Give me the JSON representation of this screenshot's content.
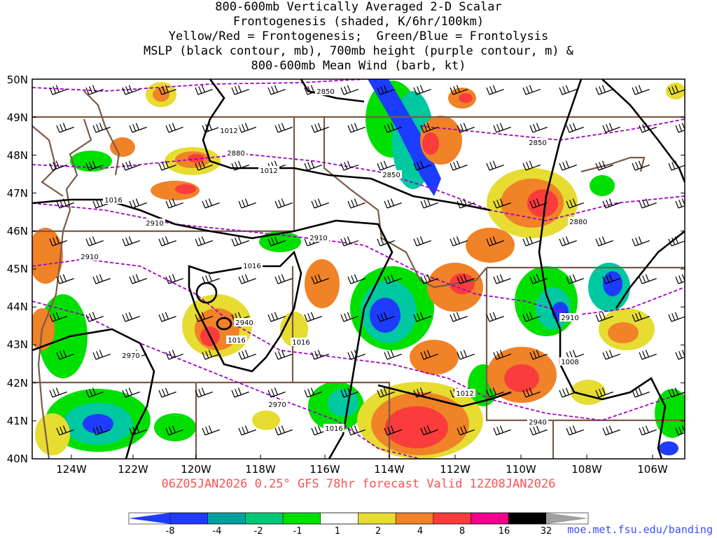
{
  "title": {
    "lines": [
      "800-600mb Vertically Averaged 2-D Scalar",
      "Frontogenesis (shaded, K/6hr/100km)",
      "Yellow/Red = Frontogenesis;  Green/Blue = Frontolysis",
      "MSLP (black contour, mb), 700mb height (purple contour, m) &",
      "800-600mb Mean Wind (barb, kt)"
    ]
  },
  "subtitle": "06Z05JAN2026 0.25° GFS 78hr forecast Valid 12Z08JAN2026",
  "credit": "moe.met.fsu.edu/banding",
  "map": {
    "lat_labels": [
      "50N",
      "49N",
      "48N",
      "47N",
      "46N",
      "45N",
      "44N",
      "43N",
      "42N",
      "41N",
      "40N"
    ],
    "lon_labels": [
      "124W",
      "122W",
      "120W",
      "118W",
      "116W",
      "114W",
      "112W",
      "110W",
      "108W",
      "106W"
    ],
    "mslp_labels": [
      "1012",
      "1012",
      "1016",
      "1016",
      "1016",
      "1016",
      "1016",
      "1012",
      "1008"
    ],
    "height_labels": [
      "2850",
      "2850",
      "2880",
      "2880",
      "2850",
      "2910",
      "2910",
      "2910",
      "2940",
      "2970",
      "2970",
      "2940",
      "2910"
    ]
  },
  "colorbar": {
    "labels": [
      "-8",
      "-4",
      "-2",
      "-1",
      "1",
      "2",
      "4",
      "8",
      "16",
      "32"
    ],
    "colors": [
      "#1e3cff",
      "#00a0a0",
      "#00c878",
      "#00e000",
      "#ffffff",
      "#e6dc32",
      "#f08228",
      "#fa3c3c",
      "#f0008c",
      "#000000"
    ]
  },
  "colors": {
    "frontolysis_strong": "#1e3cff",
    "frontolysis_mid": "#00c8a0",
    "frontolysis_weak": "#00e000",
    "frontogenesis_weak": "#e6dc32",
    "frontogenesis_mid": "#f08228",
    "frontogenesis_strong": "#fa3c3c",
    "mslp_contour": "#000000",
    "height_contour": "#a000c8",
    "borders": "#7a5a48"
  }
}
